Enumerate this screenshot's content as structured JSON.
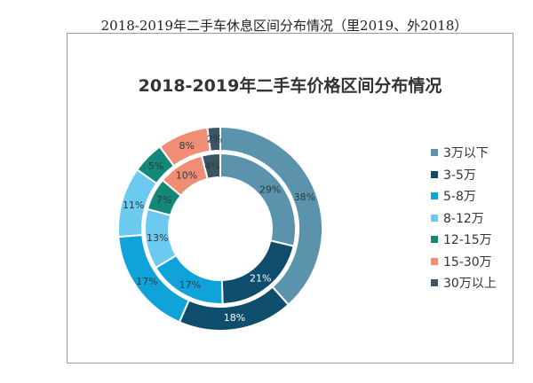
{
  "page_title": "2018-2019年二手车休息区间分布情况（里2019、外2018）",
  "chart_data": {
    "type": "donut",
    "title": "2018-2019年二手车价格区间分布情况",
    "categories": [
      "3万以下",
      "3-5万",
      "5-8万",
      "8-12万",
      "12-15万",
      "15-30万",
      "30万以上"
    ],
    "colors": [
      "#5b93ad",
      "#0e4d6b",
      "#0fa3d9",
      "#6ccaf0",
      "#138878",
      "#ef8e74",
      "#3a5563"
    ],
    "series": [
      {
        "ring": "outer",
        "values": [
          38,
          18,
          17,
          11,
          5,
          8,
          2
        ],
        "labels": [
          "38%",
          "18%",
          "17%",
          "11%",
          "5%",
          "8%",
          "2%"
        ]
      },
      {
        "ring": "inner",
        "values": [
          29,
          21,
          17,
          13,
          7,
          10,
          4
        ],
        "labels": [
          "29%",
          "21%",
          "17%",
          "13%",
          "7%",
          "10%",
          "4%"
        ]
      }
    ],
    "legend_position": "right"
  }
}
